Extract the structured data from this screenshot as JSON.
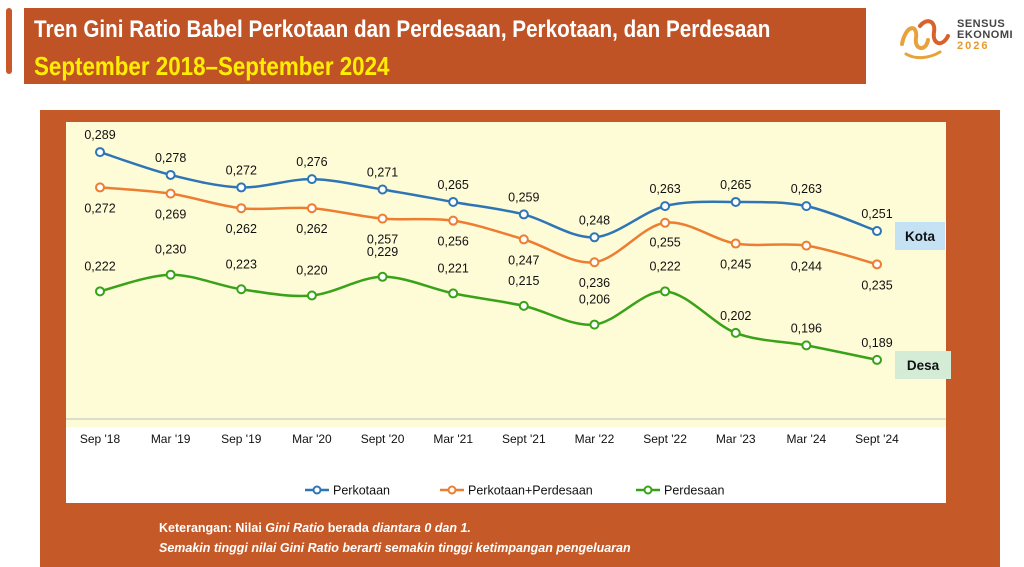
{
  "header": {
    "title": "Tren Gini Ratio Babel Perkotaan dan Perdesaan, Perkotaan, dan Perdesaan",
    "subtitle": "September 2018–September 2024"
  },
  "logo": {
    "line1": "SENSUS",
    "line2": "EKONOMI",
    "year": "2026"
  },
  "note": {
    "line1_prefix": "Keterangan: Nilai ",
    "line1_em1": "Gini Ratio",
    "line1_mid": " berada ",
    "line1_em2": "diantara 0 dan 1.",
    "line2": "Semakin tinggi nilai Gini Ratio berarti semakin tinggi ketimpangan pengeluaran"
  },
  "chart_data": {
    "type": "line",
    "categories": [
      "Sep '18",
      "Mar '19",
      "Sep '19",
      "Mar '20",
      "Sept '20",
      "Mar '21",
      "Sept '21",
      "Mar '22",
      "Sept '22",
      "Mar '23",
      "Mar '24",
      "Sept '24"
    ],
    "series": [
      {
        "name": "Perkotaan",
        "color": "#2e75b6",
        "values": [
          0.289,
          0.278,
          0.272,
          0.276,
          0.271,
          0.265,
          0.259,
          0.248,
          0.263,
          0.265,
          0.263,
          0.251
        ],
        "labels": [
          "0,289",
          "0,278",
          "0,272",
          "0,276",
          "0,271",
          "0,265",
          "0,259",
          "0,248",
          "0,263",
          "0,265",
          "0,263",
          "0,251"
        ]
      },
      {
        "name": "Perkotaan+Perdesaan",
        "color": "#ed7d31",
        "values": [
          0.272,
          0.269,
          0.262,
          0.262,
          0.257,
          0.256,
          0.247,
          0.236,
          0.255,
          0.245,
          0.244,
          0.235
        ],
        "labels": [
          "0,272",
          "0,269",
          "0,262",
          "0,262",
          "0,257",
          "0,256",
          "0,247",
          "0,236",
          "0,255",
          "0,245",
          "0,244",
          "0,235"
        ]
      },
      {
        "name": "Perdesaan",
        "color": "#38a318",
        "values": [
          0.222,
          0.23,
          0.223,
          0.22,
          0.229,
          0.221,
          0.215,
          0.206,
          0.222,
          0.202,
          0.196,
          0.189
        ],
        "labels": [
          "0,222",
          "0,230",
          "0,223",
          "0,220",
          "0,229",
          "0,221",
          "0,215",
          "0,206",
          "0,222",
          "0,202",
          "0,196",
          "0,189"
        ]
      }
    ],
    "callouts": [
      {
        "text": "Kota",
        "bg": "#c5e2f5"
      },
      {
        "text": "Desa",
        "bg": "#d4ecd6"
      }
    ],
    "legend_position": "bottom",
    "grid": false
  }
}
